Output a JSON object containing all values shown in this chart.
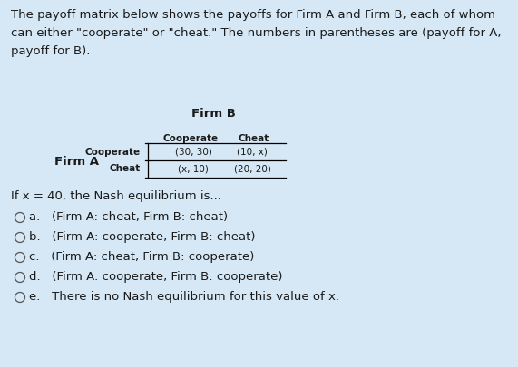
{
  "background_color": "#d6e8f5",
  "title_text": "The payoff matrix below shows the payoffs for Firm A and Firm B, each of whom\ncan either \"cooperate\" or \"cheat.\" The numbers in parentheses are (payoff for A,\npayoff for B).",
  "title_fontsize": 9.5,
  "firm_b_label": "Firm B",
  "firm_a_label": "Firm A",
  "col_headers": [
    "Cooperate",
    "Cheat"
  ],
  "row_headers": [
    "Cooperate",
    "Cheat"
  ],
  "cell_values": [
    [
      "(30, 30)",
      "(10, x)"
    ],
    [
      "(x, 10)",
      "(20, 20)"
    ]
  ],
  "question_text": "If x = 40, the Nash equilibrium is...",
  "question_fontsize": 9.5,
  "options": [
    "a.   (Firm A: cheat, Firm B: cheat)",
    "b.   (Firm A: cooperate, Firm B: cheat)",
    "c.   (Firm A: cheat, Firm B: cooperate)",
    "d.   (Firm A: cooperate, Firm B: cooperate)",
    "e.   There is no Nash equilibrium for this value of x."
  ],
  "option_fontsize": 9.5,
  "text_color": "#1a1a1a",
  "header_fontsize": 7.5,
  "cell_fontsize": 7.5,
  "bold_header_fontsize": 9.5
}
